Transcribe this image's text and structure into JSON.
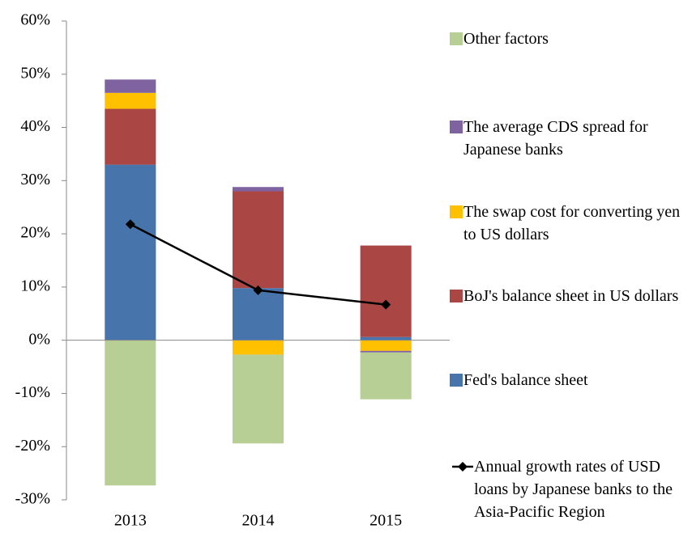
{
  "chart_data": {
    "type": "bar",
    "stacked": true,
    "categories": [
      "2013",
      "2014",
      "2015"
    ],
    "series": [
      {
        "name": "Fed's balance sheet",
        "color": "#4674ab",
        "values": [
          33,
          9.8,
          0.6
        ]
      },
      {
        "name": "BoJ's balance sheet in US dollars",
        "color": "#aa4644",
        "values": [
          10.5,
          18.2,
          17.2
        ]
      },
      {
        "name": "The swap cost for converting yen to US dollars",
        "color": "#ffc000",
        "values": [
          3,
          -2.7,
          -2
        ]
      },
      {
        "name": "The average CDS spread for Japanese banks",
        "color": "#7f63a1",
        "values": [
          2.5,
          0.8,
          -0.3
        ]
      },
      {
        "name": "Other factors",
        "color": "#b7cf95",
        "values": [
          -27.3,
          -16.7,
          -8.8
        ]
      },
      {
        "name": "Annual growth rates of USD loans by Japanese banks to the Asia-Pacific Region",
        "type": "line",
        "color": "#000000",
        "values": [
          21.8,
          9.4,
          6.7
        ]
      }
    ],
    "ylim": [
      -30,
      60
    ],
    "yticks": [
      {
        "value": -30,
        "label": "-30%"
      },
      {
        "value": -20,
        "label": "-20%"
      },
      {
        "value": -10,
        "label": "-10%"
      },
      {
        "value": 0,
        "label": "0%"
      },
      {
        "value": 10,
        "label": "10%"
      },
      {
        "value": 20,
        "label": "20%"
      },
      {
        "value": 30,
        "label": "30%"
      },
      {
        "value": 40,
        "label": "40%"
      },
      {
        "value": 50,
        "label": "50%"
      },
      {
        "value": 60,
        "label": "60%"
      }
    ],
    "legend": "right"
  }
}
